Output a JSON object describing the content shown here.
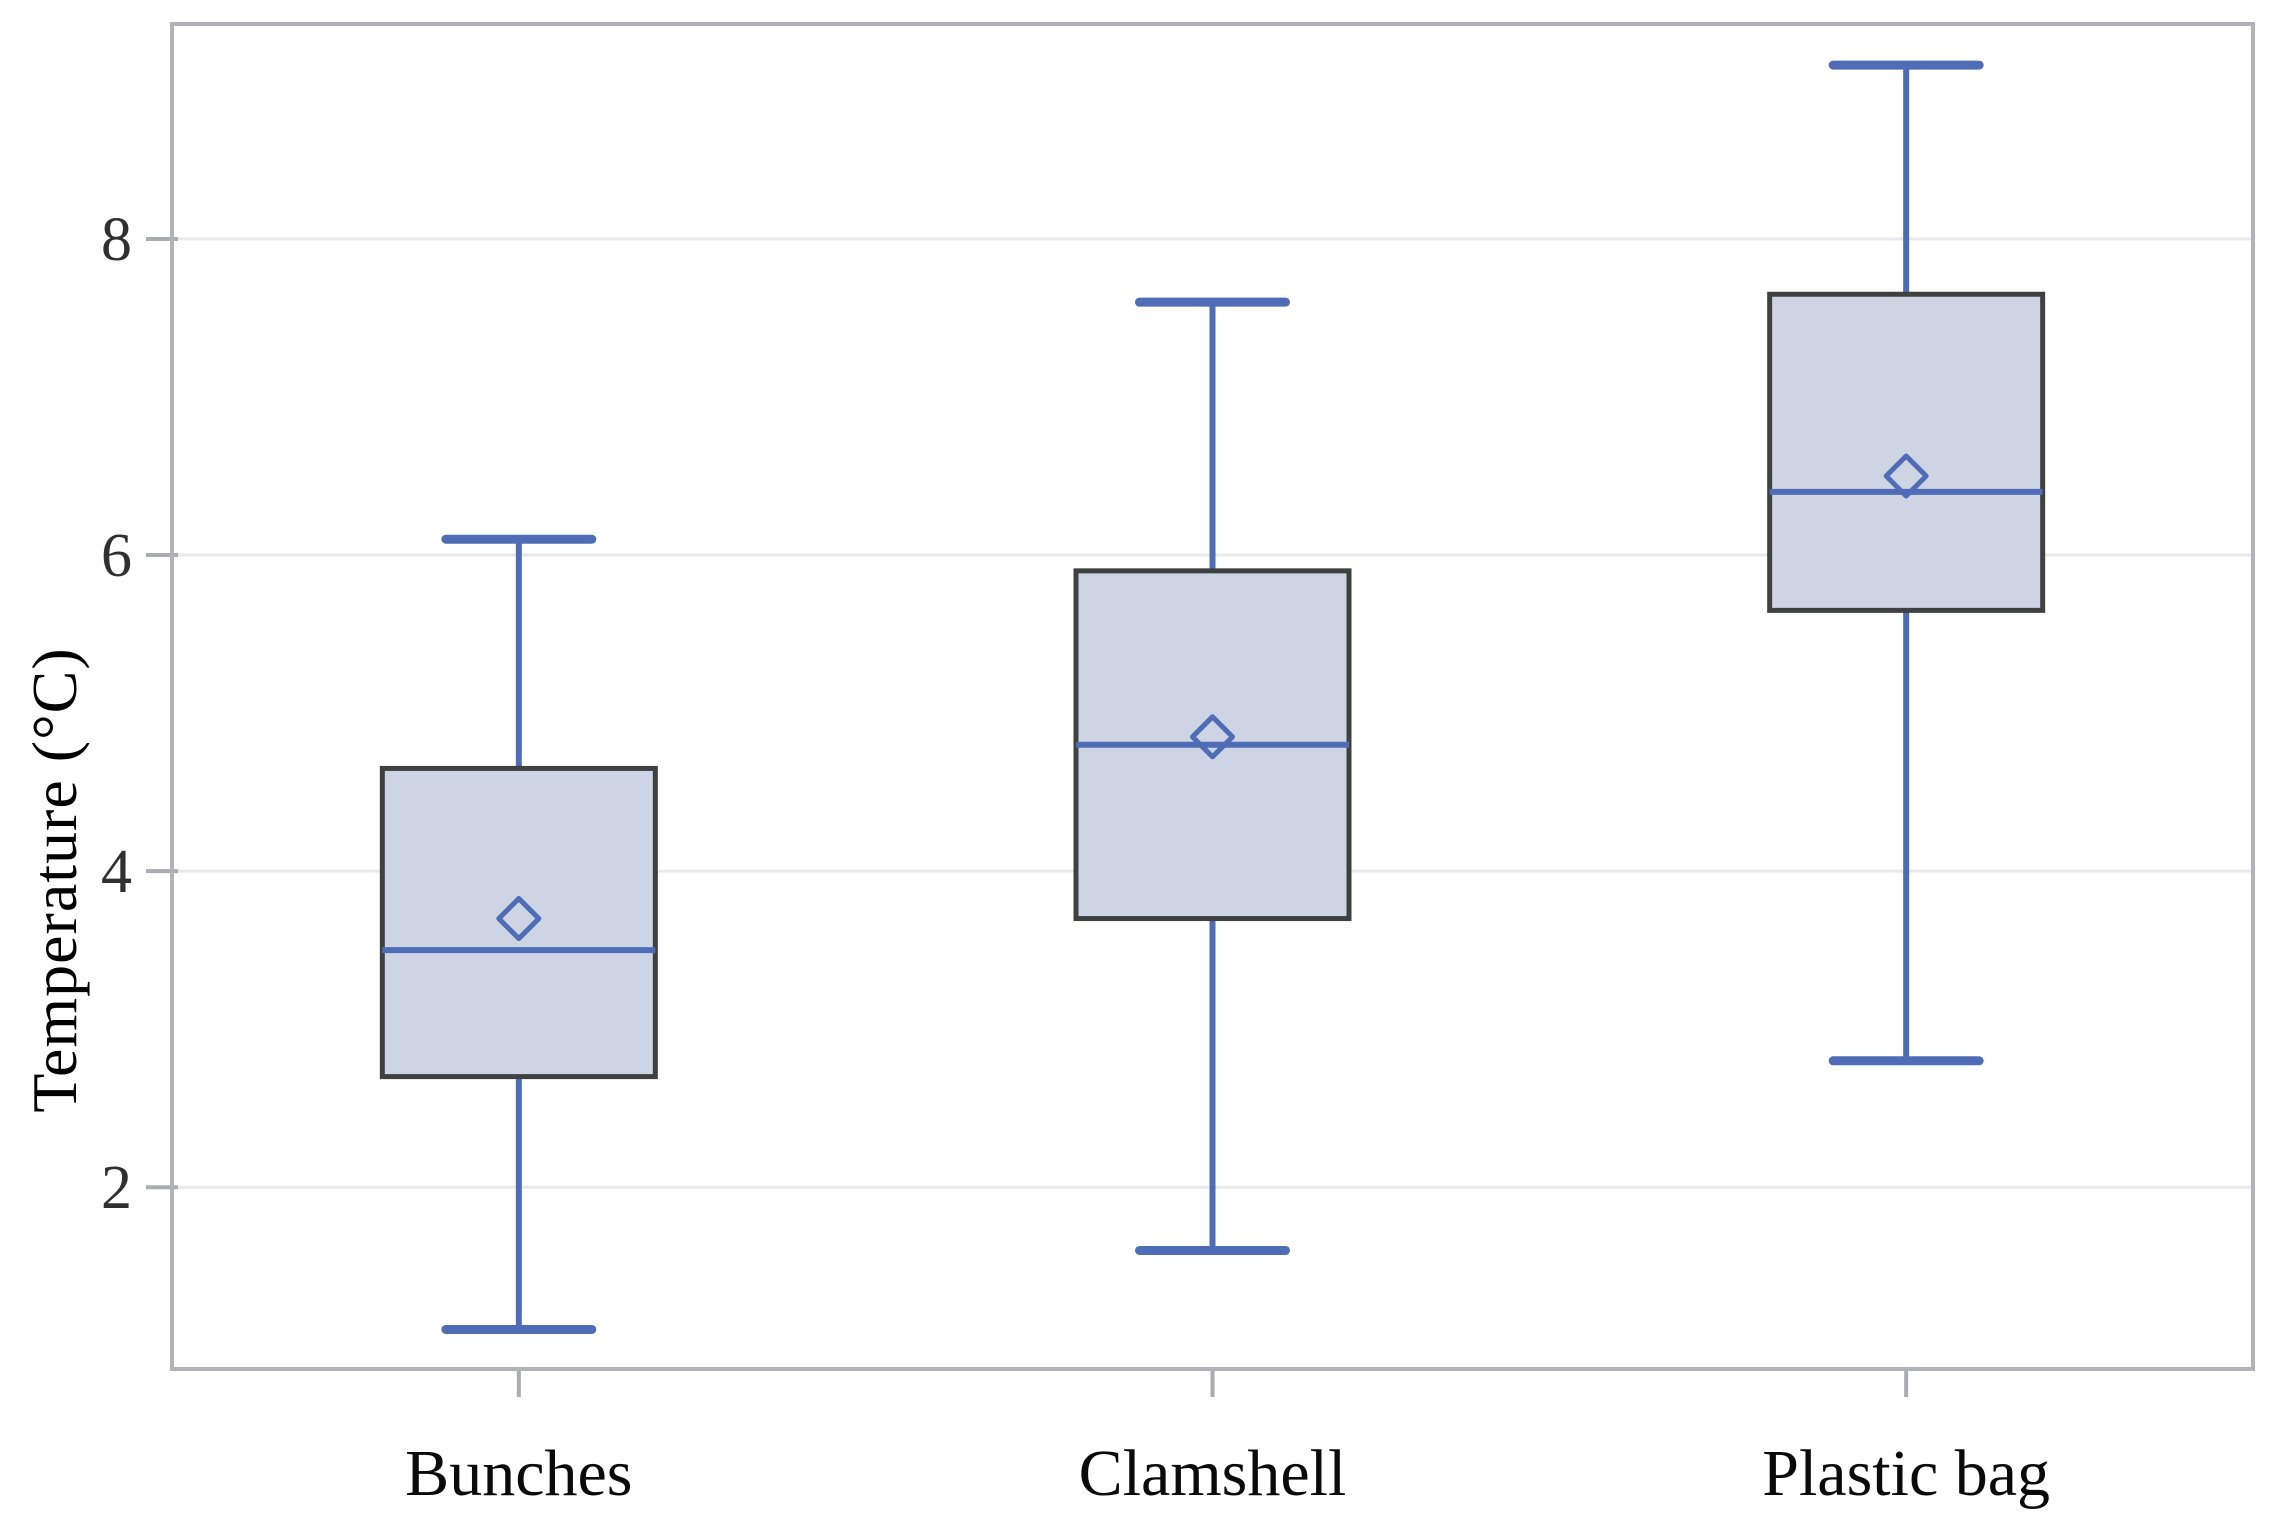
{
  "chart_data": {
    "type": "boxplot",
    "title": "",
    "xlabel": "",
    "ylabel": "Temperature (°C)",
    "categories": [
      "Bunches",
      "Clamshell",
      "Plastic bag"
    ],
    "y_ticks": [
      2,
      4,
      6,
      8
    ],
    "ylim": [
      0.85,
      9.36
    ],
    "grid": "horizontal-gridlines-on",
    "legend": "none",
    "series": [
      {
        "name": "Bunches",
        "min": 1.1,
        "q1": 2.7,
        "median": 3.5,
        "mean": 3.7,
        "q3": 4.65,
        "max": 6.1
      },
      {
        "name": "Clamshell",
        "min": 1.6,
        "q1": 3.7,
        "median": 4.8,
        "mean": 4.85,
        "q3": 5.9,
        "max": 7.6
      },
      {
        "name": "Plastic bag",
        "min": 2.8,
        "q1": 5.65,
        "median": 6.4,
        "mean": 6.5,
        "q3": 7.65,
        "max": 9.1
      }
    ],
    "marker_meaning": "hollow diamond = group mean",
    "colors": {
      "blue": "#4e6db6",
      "box_fill": "#cdd5e5",
      "box_border": "#3f4040",
      "gridline": "#e9e9e9",
      "frame": "#b0b4b6",
      "tick_stub": "#a9adaf",
      "tick_text": "#303030",
      "category_text": "#0a0a0a",
      "background": "#ffffff"
    }
  }
}
